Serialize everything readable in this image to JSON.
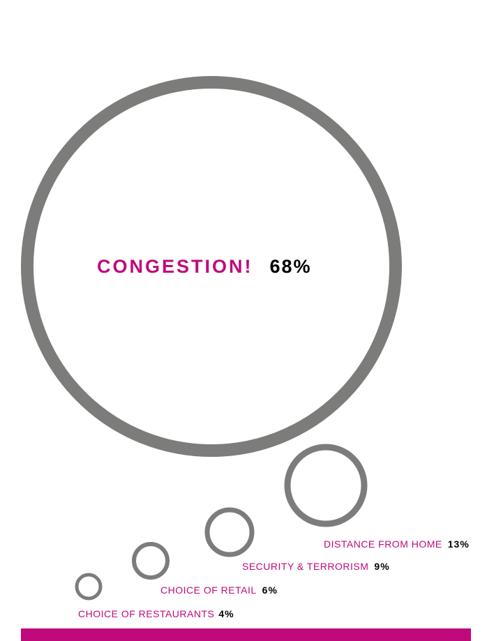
{
  "chart_data": {
    "type": "bubble",
    "title": "",
    "items": [
      {
        "label": "CONGESTION!",
        "value": 68,
        "display": "68%"
      },
      {
        "label": "DISTANCE FROM HOME",
        "value": 13,
        "display": "13%"
      },
      {
        "label": "SECURITY & TERRORISM",
        "value": 9,
        "display": "9%"
      },
      {
        "label": "CHOICE OF RETAIL",
        "value": 6,
        "display": "6%"
      },
      {
        "label": "CHOICE OF RESTAURANTS",
        "value": 4,
        "display": "4%"
      }
    ]
  },
  "colors": {
    "accent": "#c0097a",
    "ring": "#7c7d7b",
    "value_text": "#000000",
    "bar": "#c0097a"
  }
}
